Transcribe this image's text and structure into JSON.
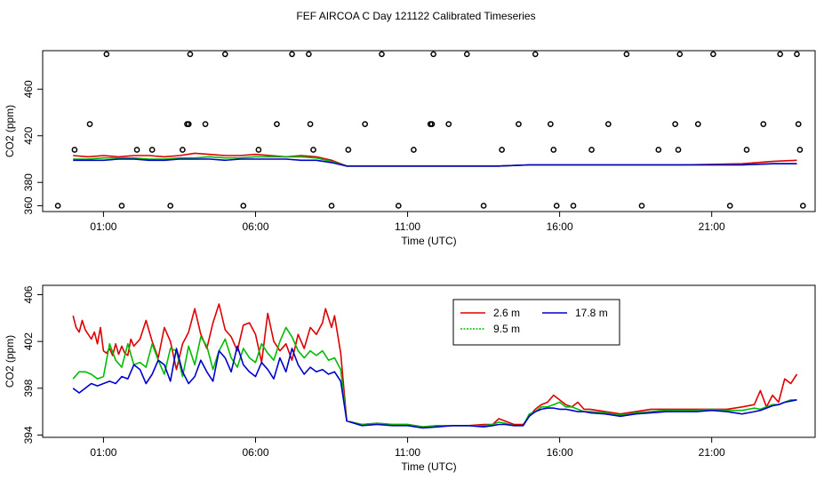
{
  "title": "FEF AIRCOA C  Day 121122  Calibrated Timeseries",
  "chart_data": [
    {
      "type": "line",
      "panel": "top",
      "xlabel": "Time (UTC)",
      "ylabel": "CO2 (ppm)",
      "xlim": [
        -1,
        24.4
      ],
      "ylim": [
        355,
        493
      ],
      "xticks": [
        1,
        6,
        11,
        16,
        21
      ],
      "xtick_labels": [
        "01:00",
        "06:00",
        "11:00",
        "16:00",
        "21:00"
      ],
      "yticks": [
        360,
        380,
        420,
        460
      ],
      "ytick_labels": [
        "360",
        "380",
        "420",
        "460"
      ],
      "series": [
        {
          "name": "2.6 m",
          "color": "#dd0000",
          "x": [
            0,
            0.5,
            1,
            1.5,
            2,
            2.5,
            3,
            3.5,
            4,
            4.5,
            5,
            5.5,
            6,
            6.5,
            7,
            7.5,
            8,
            8.5,
            9,
            10,
            12,
            13,
            14,
            15,
            16,
            18,
            20,
            22,
            23,
            23.8
          ],
          "y": [
            403,
            402,
            403,
            402,
            403,
            403,
            402,
            403,
            405,
            404,
            403,
            403,
            404,
            403,
            402,
            403,
            402,
            399,
            394,
            394,
            394,
            394,
            394,
            395,
            395,
            395,
            395,
            396,
            398,
            399
          ]
        },
        {
          "name": "9.5 m",
          "color": "#00bb00",
          "x": [
            0,
            0.5,
            1,
            1.5,
            2,
            2.5,
            3,
            3.5,
            4,
            4.5,
            5,
            5.5,
            6,
            6.5,
            7,
            7.5,
            8,
            8.5,
            9,
            10,
            12,
            13,
            14,
            15,
            16,
            18,
            20,
            22,
            23,
            23.8
          ],
          "y": [
            400,
            400,
            401,
            401,
            401,
            400,
            400,
            401,
            401,
            402,
            401,
            401,
            402,
            402,
            402,
            402,
            401,
            398,
            394,
            394,
            394,
            394,
            394,
            395,
            395,
            395,
            395,
            395,
            396,
            396
          ]
        },
        {
          "name": "17.8 m",
          "color": "#0000cc",
          "x": [
            0,
            0.5,
            1,
            1.5,
            2,
            2.5,
            3,
            3.5,
            4,
            4.5,
            5,
            5.5,
            6,
            6.5,
            7,
            7.5,
            8,
            8.5,
            9,
            10,
            12,
            13,
            14,
            15,
            16,
            18,
            20,
            22,
            23,
            23.8
          ],
          "y": [
            399,
            399,
            399,
            400,
            400,
            399,
            399,
            400,
            400,
            400,
            399,
            400,
            400,
            400,
            400,
            399,
            399,
            397,
            394,
            394,
            394,
            394,
            394,
            395,
            395,
            395,
            395,
            395,
            396,
            396
          ]
        }
      ],
      "points": {
        "x": [
          -0.5,
          0.05,
          0.55,
          1.1,
          1.6,
          2.1,
          2.6,
          3.2,
          3.6,
          3.75,
          3.8,
          3.85,
          4.35,
          5.0,
          5.6,
          6.1,
          6.7,
          7.2,
          7.75,
          7.8,
          7.9,
          8.5,
          9.05,
          9.6,
          10.15,
          10.7,
          11.2,
          11.75,
          11.8,
          11.85,
          12.35,
          12.95,
          13.5,
          14.1,
          14.65,
          15.2,
          15.7,
          15.8,
          15.9,
          16.45,
          17.05,
          17.6,
          18.2,
          18.7,
          19.25,
          19.8,
          19.9,
          19.95,
          20.55,
          21.05,
          21.6,
          22.15,
          22.7,
          23.25,
          23.8,
          23.85,
          23.9,
          24.0
        ],
        "y": [
          360,
          408,
          430,
          490,
          360,
          408,
          408,
          360,
          408,
          430,
          430,
          490,
          430,
          490,
          360,
          408,
          430,
          490,
          490,
          430,
          408,
          360,
          408,
          430,
          490,
          360,
          408,
          430,
          430,
          490,
          430,
          490,
          360,
          408,
          430,
          490,
          430,
          408,
          360,
          360,
          408,
          430,
          490,
          360,
          408,
          430,
          408,
          490,
          430,
          490,
          360,
          408,
          430,
          490,
          490,
          430,
          408,
          360
        ]
      }
    },
    {
      "type": "line",
      "panel": "bottom",
      "xlabel": "Time (UTC)",
      "ylabel": "CO2 (ppm)",
      "xlim": [
        -1,
        24.4
      ],
      "ylim": [
        393.8,
        406.8
      ],
      "xticks": [
        1,
        6,
        11,
        16,
        21
      ],
      "xtick_labels": [
        "01:00",
        "06:00",
        "11:00",
        "16:00",
        "21:00"
      ],
      "yticks": [
        394,
        398,
        402,
        406
      ],
      "ytick_labels": [
        "394",
        "398",
        "402",
        "406"
      ],
      "legend_position": "top-center",
      "series": [
        {
          "name": "2.6 m",
          "color": "#dd0000",
          "x": [
            0,
            0.1,
            0.2,
            0.3,
            0.4,
            0.5,
            0.6,
            0.7,
            0.8,
            0.9,
            1.0,
            1.1,
            1.2,
            1.3,
            1.4,
            1.5,
            1.6,
            1.7,
            1.8,
            1.9,
            2.0,
            2.2,
            2.4,
            2.6,
            2.8,
            3.0,
            3.2,
            3.4,
            3.6,
            3.8,
            4.0,
            4.2,
            4.4,
            4.6,
            4.8,
            5.0,
            5.2,
            5.4,
            5.6,
            5.8,
            6.0,
            6.2,
            6.4,
            6.6,
            6.8,
            7.0,
            7.2,
            7.4,
            7.6,
            7.8,
            8.0,
            8.2,
            8.3,
            8.4,
            8.5,
            8.6,
            8.8,
            9.0,
            9.5,
            10,
            10.5,
            11,
            11.5,
            12,
            12.5,
            13,
            13.5,
            13.8,
            14.0,
            14.2,
            14.5,
            14.8,
            15.0,
            15.2,
            15.4,
            15.6,
            15.8,
            16.0,
            16.2,
            16.4,
            16.6,
            16.8,
            17.0,
            17.5,
            18.0,
            18.5,
            19.0,
            19.5,
            20.0,
            20.5,
            21.0,
            21.5,
            22.0,
            22.4,
            22.6,
            22.8,
            23.0,
            23.2,
            23.4,
            23.6,
            23.8
          ],
          "y": [
            404.2,
            403.2,
            402.8,
            403.8,
            403.0,
            402.6,
            402.2,
            402.8,
            401.8,
            403.2,
            401.2,
            401.0,
            401.4,
            400.8,
            401.8,
            400.9,
            401.6,
            401.0,
            400.8,
            402.2,
            401.6,
            402.2,
            403.8,
            402.0,
            400.6,
            403.2,
            402.0,
            399.6,
            401.8,
            402.8,
            404.8,
            402.6,
            401.4,
            403.6,
            405.2,
            403.0,
            402.4,
            401.2,
            403.4,
            403.6,
            402.6,
            400.2,
            404.4,
            402.0,
            401.2,
            401.8,
            400.4,
            402.6,
            401.4,
            403.2,
            402.6,
            403.6,
            404.8,
            404.0,
            403.2,
            404.2,
            401.0,
            395.2,
            394.9,
            395.0,
            394.9,
            394.9,
            394.7,
            394.8,
            394.8,
            394.8,
            394.9,
            394.9,
            395.4,
            395.2,
            394.9,
            394.9,
            395.6,
            396.2,
            396.6,
            396.8,
            397.4,
            397.0,
            396.6,
            396.4,
            396.8,
            396.2,
            396.2,
            396.0,
            395.8,
            396.0,
            396.2,
            396.2,
            396.2,
            396.2,
            396.2,
            396.2,
            396.4,
            396.6,
            397.8,
            396.4,
            397.4,
            396.8,
            398.8,
            398.4,
            399.2
          ]
        },
        {
          "name": "9.5 m",
          "color": "#00bb00",
          "x": [
            0,
            0.2,
            0.4,
            0.6,
            0.8,
            1.0,
            1.2,
            1.4,
            1.6,
            1.8,
            2.0,
            2.2,
            2.4,
            2.6,
            2.8,
            3.0,
            3.2,
            3.4,
            3.6,
            3.8,
            4.0,
            4.2,
            4.4,
            4.6,
            4.8,
            5.0,
            5.2,
            5.4,
            5.6,
            5.8,
            6.0,
            6.2,
            6.4,
            6.6,
            6.8,
            7.0,
            7.2,
            7.4,
            7.6,
            7.8,
            8.0,
            8.2,
            8.4,
            8.6,
            8.8,
            9.0,
            9.5,
            10,
            10.5,
            11,
            11.5,
            12,
            12.5,
            13,
            13.5,
            13.8,
            14.0,
            14.2,
            14.5,
            14.8,
            15.0,
            15.2,
            15.4,
            15.6,
            15.8,
            16.0,
            16.2,
            16.4,
            16.6,
            16.8,
            17.0,
            17.5,
            18.0,
            18.5,
            19.0,
            19.5,
            20.0,
            20.5,
            21.0,
            21.5,
            22.0,
            22.4,
            22.6,
            22.8,
            23.0,
            23.2,
            23.4,
            23.6,
            23.8
          ],
          "y": [
            398.8,
            399.4,
            399.4,
            399.2,
            398.8,
            399.0,
            401.8,
            400.4,
            399.8,
            401.8,
            400.0,
            400.2,
            399.8,
            401.8,
            400.4,
            399.2,
            401.4,
            401.2,
            399.0,
            401.6,
            400.0,
            402.4,
            401.6,
            399.6,
            401.2,
            402.2,
            400.6,
            399.8,
            401.4,
            400.6,
            400.2,
            401.8,
            401.0,
            400.4,
            402.0,
            403.2,
            402.4,
            401.2,
            400.6,
            401.2,
            400.8,
            401.2,
            400.4,
            400.6,
            399.6,
            395.2,
            394.9,
            395.0,
            394.9,
            394.9,
            394.7,
            394.8,
            394.8,
            394.8,
            394.8,
            394.9,
            395.1,
            395.0,
            394.8,
            394.8,
            395.8,
            396.0,
            396.4,
            396.4,
            396.6,
            396.8,
            396.4,
            396.4,
            396.2,
            396.0,
            396.0,
            395.9,
            395.7,
            395.9,
            396.0,
            396.1,
            396.1,
            396.1,
            396.2,
            396.1,
            396.1,
            396.3,
            396.2,
            396.4,
            396.6,
            396.6,
            396.8,
            397.0,
            397.0
          ]
        },
        {
          "name": "17.8 m",
          "color": "#0000cc",
          "x": [
            0,
            0.2,
            0.4,
            0.6,
            0.8,
            1.0,
            1.2,
            1.4,
            1.6,
            1.8,
            2.0,
            2.2,
            2.4,
            2.6,
            2.8,
            3.0,
            3.2,
            3.4,
            3.6,
            3.8,
            4.0,
            4.2,
            4.4,
            4.6,
            4.8,
            5.0,
            5.2,
            5.4,
            5.6,
            5.8,
            6.0,
            6.2,
            6.4,
            6.6,
            6.8,
            7.0,
            7.2,
            7.4,
            7.6,
            7.8,
            8.0,
            8.2,
            8.4,
            8.6,
            8.8,
            9.0,
            9.5,
            10,
            10.5,
            11,
            11.5,
            12,
            12.5,
            13,
            13.5,
            13.8,
            14.0,
            14.2,
            14.5,
            14.8,
            15.0,
            15.2,
            15.4,
            15.6,
            15.8,
            16.0,
            16.2,
            16.4,
            16.6,
            16.8,
            17.0,
            17.5,
            18.0,
            18.5,
            19.0,
            19.5,
            20.0,
            20.5,
            21.0,
            21.5,
            22.0,
            22.4,
            22.6,
            22.8,
            23.0,
            23.2,
            23.4,
            23.6,
            23.8
          ],
          "y": [
            398.0,
            397.6,
            398.0,
            398.4,
            398.2,
            398.4,
            398.6,
            398.4,
            399.0,
            398.8,
            400.0,
            399.6,
            398.4,
            399.2,
            400.4,
            400.0,
            398.6,
            401.4,
            399.4,
            398.4,
            399.0,
            400.4,
            399.4,
            398.6,
            401.2,
            400.6,
            399.4,
            401.6,
            400.0,
            399.4,
            399.0,
            400.2,
            399.6,
            398.8,
            400.6,
            399.4,
            401.4,
            400.0,
            399.2,
            399.8,
            399.4,
            399.6,
            399.2,
            399.4,
            398.6,
            395.2,
            394.8,
            394.9,
            394.8,
            394.8,
            394.6,
            394.7,
            394.8,
            394.8,
            394.7,
            394.8,
            394.9,
            394.9,
            394.8,
            394.8,
            395.6,
            396.0,
            396.2,
            396.3,
            396.3,
            396.2,
            396.2,
            396.1,
            396.0,
            396.0,
            395.9,
            395.8,
            395.6,
            395.8,
            395.9,
            396.0,
            396.0,
            396.0,
            396.1,
            396.0,
            395.8,
            396.0,
            396.1,
            396.3,
            396.5,
            396.6,
            396.8,
            396.9,
            397.0
          ]
        }
      ]
    }
  ]
}
